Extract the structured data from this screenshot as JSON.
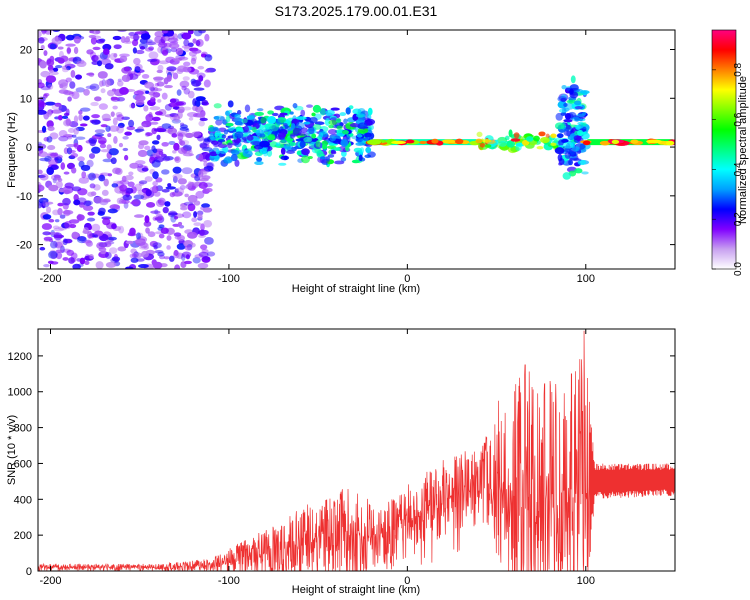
{
  "figure": {
    "title": "S173.2025.179.00.01.E31"
  },
  "chart_data": [
    {
      "type": "heatmap",
      "title": "",
      "xlabel": "Height of straight line (km)",
      "ylabel": "Frequency (Hz)",
      "xlim": [
        -207,
        150
      ],
      "ylim": [
        -25,
        24
      ],
      "xticks": [
        "-200",
        "-100",
        "0",
        "100"
      ],
      "yticks": [
        "-20",
        "-10",
        "0",
        "10",
        "20"
      ],
      "grid": false,
      "colorbar": {
        "label": "Normalized spectral amplitude",
        "range": [
          0.0,
          0.96
        ],
        "ticks": [
          "0.0",
          "0.2",
          "0.4",
          "0.6",
          "0.8"
        ],
        "colors": [
          "#ffffff",
          "#c8a0f0",
          "#8000ff",
          "#0000ff",
          "#00a0ff",
          "#00ffff",
          "#00ff80",
          "#00ff00",
          "#80ff00",
          "#ffff00",
          "#ff8000",
          "#ff0000",
          "#ff0080"
        ]
      },
      "regions": [
        {
          "x": [
            -207,
            -110
          ],
          "f_min": -25,
          "f_max": 24,
          "amplitude": [
            0.1,
            0.25
          ],
          "character": "noise"
        },
        {
          "x": [
            -110,
            -20
          ],
          "f_min": -4,
          "f_max": 9,
          "amplitude": [
            0.2,
            0.55
          ],
          "character": "band"
        },
        {
          "x": [
            -20,
            40
          ],
          "f_min": 0,
          "f_max": 2,
          "amplitude": [
            0.6,
            0.95
          ],
          "character": "line"
        },
        {
          "x": [
            40,
            85
          ],
          "f_min": -1,
          "f_max": 3,
          "amplitude": [
            0.4,
            0.9
          ],
          "character": "band"
        },
        {
          "x": [
            85,
            100
          ],
          "f_min": -8,
          "f_max": 15,
          "amplitude": [
            0.2,
            0.5
          ],
          "character": "burst"
        },
        {
          "x": [
            100,
            150
          ],
          "f_min": 0,
          "f_max": 2,
          "amplitude": [
            0.7,
            0.96
          ],
          "character": "line"
        }
      ]
    },
    {
      "type": "line",
      "title": "",
      "xlabel": "Height of straight line (km)",
      "ylabel": "SNR (10 * v/v)",
      "xlim": [
        -207,
        150
      ],
      "ylim": [
        0,
        1350
      ],
      "xticks": [
        "-200",
        "-100",
        "0",
        "100"
      ],
      "yticks": [
        "0",
        "200",
        "400",
        "600",
        "800",
        "1000",
        "1200"
      ],
      "grid": false,
      "color": "#ee3030",
      "envelope": [
        {
          "x": -207,
          "y": 20,
          "peak": 40
        },
        {
          "x": -140,
          "y": 20,
          "peak": 40
        },
        {
          "x": -110,
          "y": 30,
          "peak": 70
        },
        {
          "x": -90,
          "y": 80,
          "peak": 180
        },
        {
          "x": -70,
          "y": 120,
          "peak": 280
        },
        {
          "x": -50,
          "y": 180,
          "peak": 430
        },
        {
          "x": -30,
          "y": 180,
          "peak": 470
        },
        {
          "x": -15,
          "y": 200,
          "peak": 350
        },
        {
          "x": 0,
          "y": 300,
          "peak": 480
        },
        {
          "x": 20,
          "y": 400,
          "peak": 620
        },
        {
          "x": 40,
          "y": 480,
          "peak": 700
        },
        {
          "x": 55,
          "y": 430,
          "peak": 900
        },
        {
          "x": 65,
          "y": 350,
          "peak": 1150
        },
        {
          "x": 80,
          "y": 400,
          "peak": 1060
        },
        {
          "x": 92,
          "y": 450,
          "peak": 1100
        },
        {
          "x": 99,
          "y": 500,
          "peak": 1340
        },
        {
          "x": 105,
          "y": 500,
          "peak": 600
        },
        {
          "x": 150,
          "y": 510,
          "peak": 600
        }
      ],
      "notable_peaks": [
        {
          "x": 51,
          "y": 950
        },
        {
          "x": 66,
          "y": 1150
        },
        {
          "x": 80,
          "y": 1060
        },
        {
          "x": 92,
          "y": 1100
        },
        {
          "x": 99,
          "y": 1340
        }
      ]
    }
  ]
}
